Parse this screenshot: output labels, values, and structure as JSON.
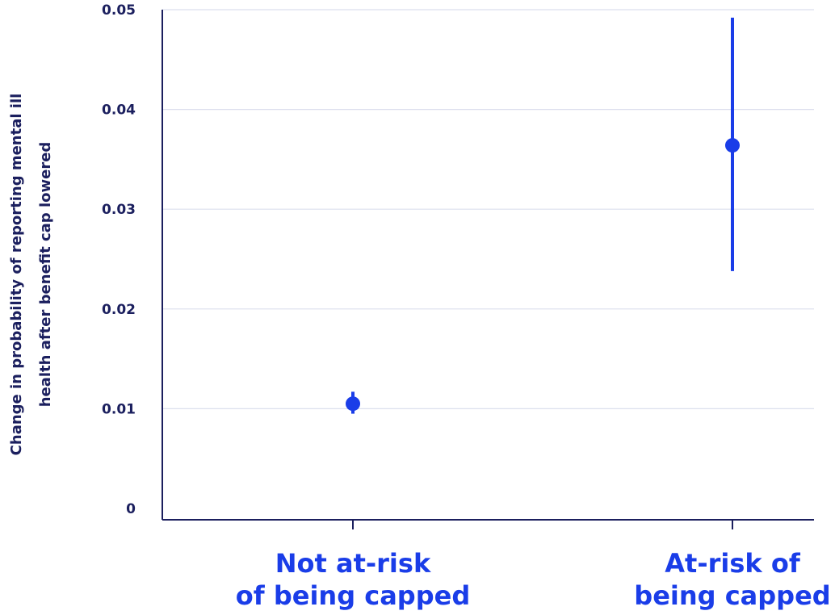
{
  "chart_data": {
    "type": "scatter",
    "title": "",
    "ylabel": [
      "Change in probability of reporting mental ill",
      "health after benefit cap lowered"
    ],
    "ylim": [
      0,
      0.05
    ],
    "yticks": [
      0,
      0.01,
      0.02,
      0.03,
      0.04,
      0.05
    ],
    "ytick_labels": [
      "0",
      "0.01",
      "0.02",
      "0.03",
      "0.04",
      "0.05"
    ],
    "grid": true,
    "categories": [
      [
        "Not at-risk",
        "of being capped"
      ],
      [
        "At-risk of",
        "being capped"
      ]
    ],
    "points": [
      {
        "estimate": 0.0105,
        "lower": 0.0095,
        "upper": 0.0117
      },
      {
        "estimate": 0.0364,
        "lower": 0.0238,
        "upper": 0.0492
      }
    ],
    "color": "#1a3de8",
    "axis_color": "#1b1f5e",
    "grid_color": "#dcdfee"
  }
}
